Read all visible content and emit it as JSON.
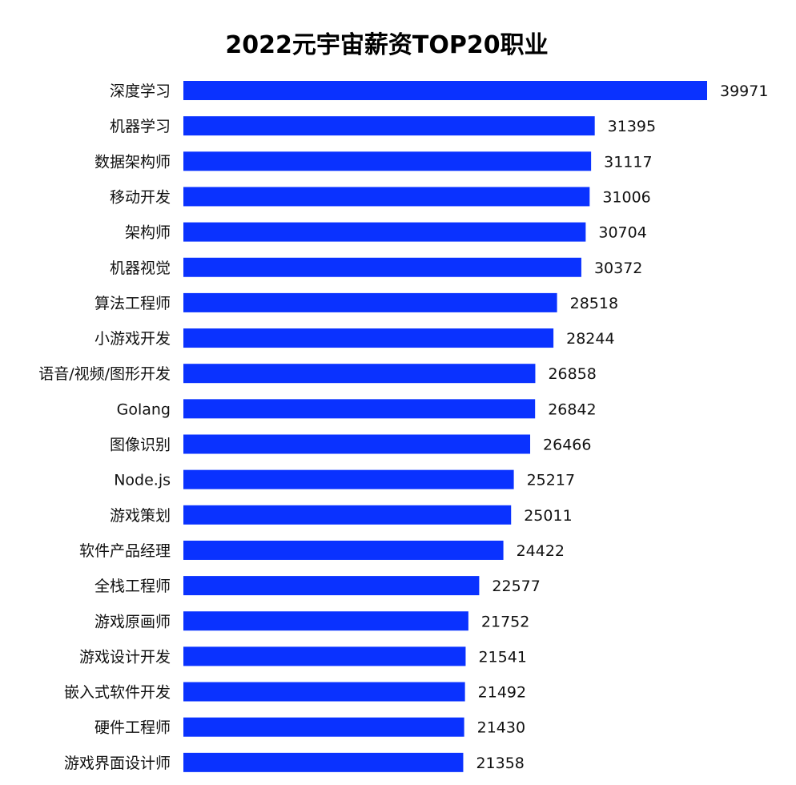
{
  "chart_data": {
    "type": "bar",
    "orientation": "horizontal",
    "title": "2022元宇宙薪资TOP20职业",
    "xlabel": "",
    "ylabel": "",
    "grid": false,
    "legend": "none",
    "categories": [
      "深度学习",
      "机器学习",
      "数据架构师",
      "移动开发",
      "架构师",
      "机器视觉",
      "算法工程师",
      "小游戏开发",
      "语音/视频/图形开发",
      "Golang",
      "图像识别",
      "Node.js",
      "游戏策划",
      "软件产品经理",
      "全栈工程师",
      "游戏原画师",
      "游戏设计开发",
      "嵌入式软件开发",
      "硬件工程师",
      "游戏界面设计师"
    ],
    "values": [
      39971,
      31395,
      31117,
      31006,
      30704,
      30372,
      28518,
      28244,
      26858,
      26842,
      26466,
      25217,
      25011,
      24422,
      22577,
      21752,
      21541,
      21492,
      21430,
      21358
    ],
    "value_labels": [
      "39971",
      "31395",
      "31117",
      "31006",
      "30704",
      "30372",
      "28518",
      "28244",
      "26858",
      "26842",
      "26466",
      "25217",
      "25011",
      "24422",
      "22577",
      "21752",
      "21541",
      "21492",
      "21430",
      "21358"
    ],
    "colors": {
      "bar": "#0a32ff",
      "text": "#111111",
      "title": "#000000",
      "background": "#ffffff"
    }
  }
}
